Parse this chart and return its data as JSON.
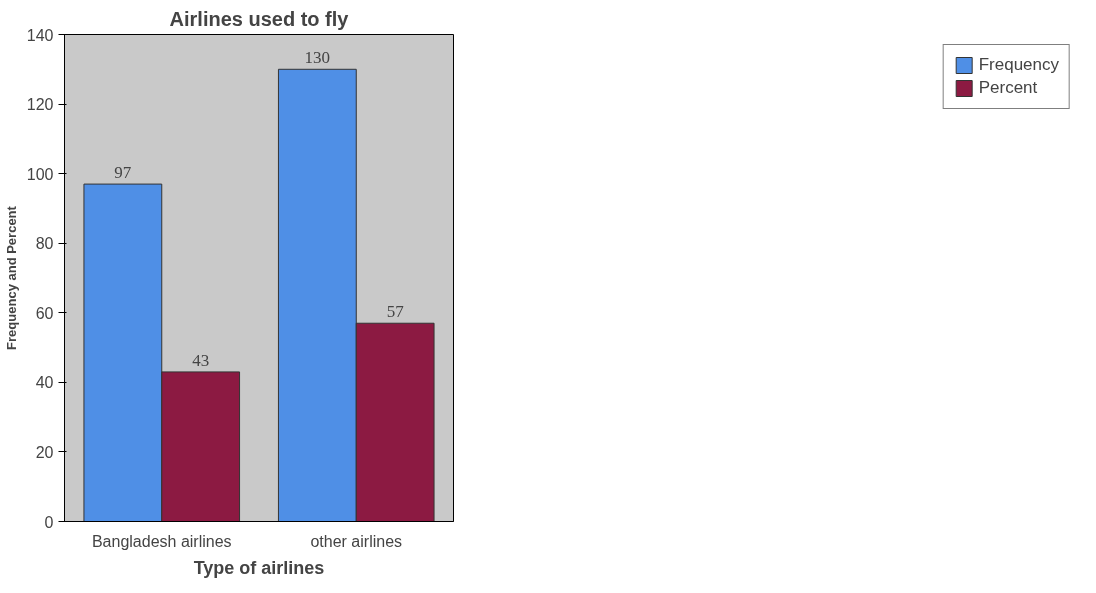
{
  "chart_data": {
    "type": "bar",
    "title": "Airlines used to fly",
    "xlabel": "Type of airlines",
    "ylabel": "Frequency and Percent",
    "categories": [
      "Bangladesh airlines",
      "other airlines"
    ],
    "series": [
      {
        "name": "Frequency",
        "color": "#4f8fe6",
        "values": [
          97,
          130
        ]
      },
      {
        "name": "Percent",
        "color": "#8c1a42",
        "values": [
          43,
          57
        ]
      }
    ],
    "ylim": [
      0,
      140
    ],
    "yticks": [
      0,
      20,
      40,
      60,
      80,
      100,
      120,
      140
    ],
    "grid": false,
    "legend": "right",
    "data_labels": true
  }
}
